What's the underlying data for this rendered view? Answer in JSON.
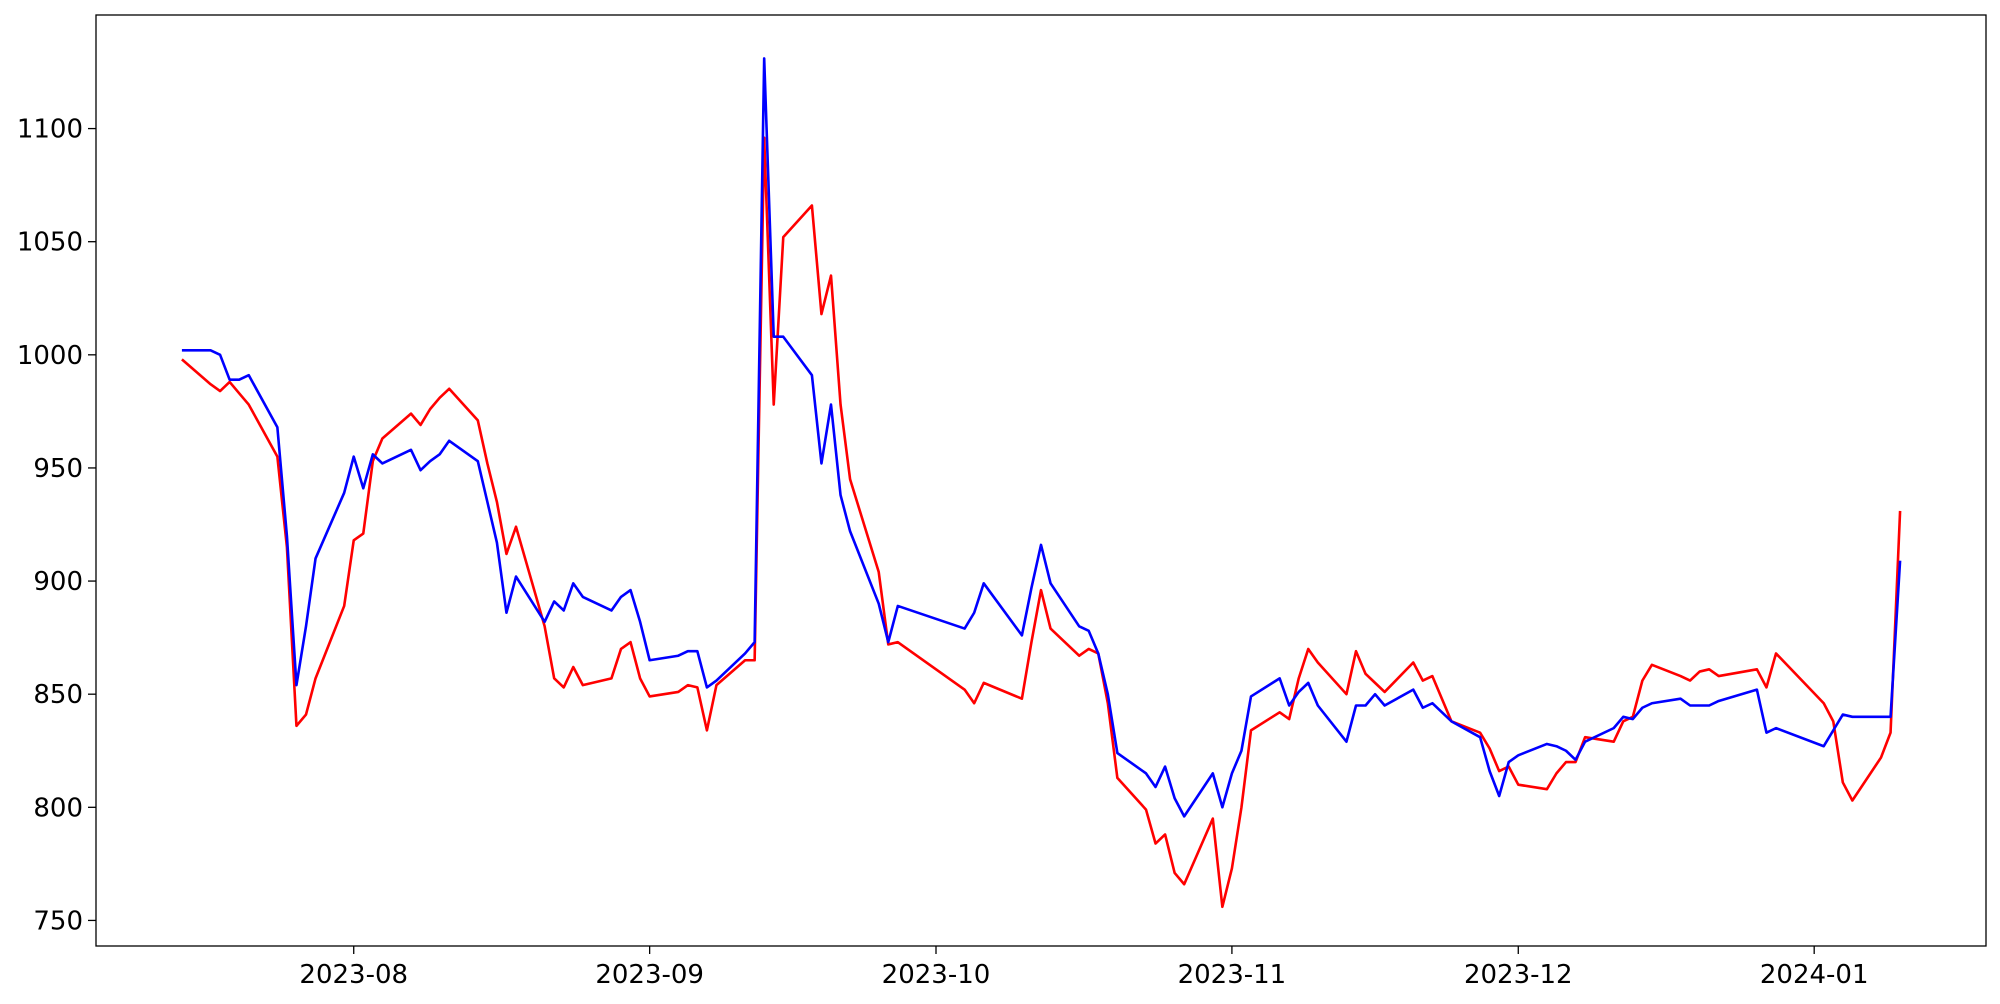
{
  "chart_data": {
    "type": "line",
    "x": [
      "2023-07-14",
      "2023-07-17",
      "2023-07-18",
      "2023-07-19",
      "2023-07-20",
      "2023-07-21",
      "2023-07-24",
      "2023-07-25",
      "2023-07-26",
      "2023-07-27",
      "2023-07-28",
      "2023-07-31",
      "2023-08-01",
      "2023-08-02",
      "2023-08-03",
      "2023-08-04",
      "2023-08-07",
      "2023-08-08",
      "2023-08-09",
      "2023-08-10",
      "2023-08-11",
      "2023-08-14",
      "2023-08-15",
      "2023-08-16",
      "2023-08-17",
      "2023-08-18",
      "2023-08-21",
      "2023-08-22",
      "2023-08-23",
      "2023-08-24",
      "2023-08-25",
      "2023-08-28",
      "2023-08-29",
      "2023-08-30",
      "2023-08-31",
      "2023-09-01",
      "2023-09-04",
      "2023-09-05",
      "2023-09-06",
      "2023-09-07",
      "2023-09-08",
      "2023-09-11",
      "2023-09-12",
      "2023-09-13",
      "2023-09-14",
      "2023-09-15",
      "2023-09-18",
      "2023-09-19",
      "2023-09-20",
      "2023-09-21",
      "2023-09-22",
      "2023-09-25",
      "2023-09-26",
      "2023-09-27",
      "2023-10-04",
      "2023-10-05",
      "2023-10-06",
      "2023-10-10",
      "2023-10-11",
      "2023-10-12",
      "2023-10-13",
      "2023-10-16",
      "2023-10-17",
      "2023-10-18",
      "2023-10-19",
      "2023-10-20",
      "2023-10-23",
      "2023-10-24",
      "2023-10-25",
      "2023-10-26",
      "2023-10-27",
      "2023-10-30",
      "2023-10-31",
      "2023-11-01",
      "2023-11-02",
      "2023-11-03",
      "2023-11-06",
      "2023-11-07",
      "2023-11-08",
      "2023-11-09",
      "2023-11-10",
      "2023-11-13",
      "2023-11-14",
      "2023-11-15",
      "2023-11-16",
      "2023-11-17",
      "2023-11-20",
      "2023-11-21",
      "2023-11-22",
      "2023-11-24",
      "2023-11-27",
      "2023-11-28",
      "2023-11-29",
      "2023-11-30",
      "2023-12-01",
      "2023-12-04",
      "2023-12-05",
      "2023-12-06",
      "2023-12-07",
      "2023-12-08",
      "2023-12-11",
      "2023-12-12",
      "2023-12-13",
      "2023-12-14",
      "2023-12-15",
      "2023-12-18",
      "2023-12-19",
      "2023-12-20",
      "2023-12-21",
      "2023-12-22",
      "2023-12-26",
      "2023-12-27",
      "2023-12-28",
      "2024-01-02",
      "2024-01-03",
      "2024-01-04",
      "2024-01-05",
      "2024-01-08",
      "2024-01-09",
      "2024-01-10"
    ],
    "series": [
      {
        "color": "#ff0000",
        "values": [
          998,
          987,
          984,
          988,
          983,
          978,
          955,
          915,
          836,
          841,
          857,
          889,
          918,
          921,
          953,
          963,
          974,
          969,
          976,
          981,
          985,
          971,
          952,
          935,
          912,
          924,
          880,
          857,
          853,
          862,
          854,
          857,
          870,
          873,
          857,
          849,
          851,
          854,
          853,
          834,
          854,
          865,
          865,
          1096,
          978,
          1052,
          1066,
          1018,
          1035,
          978,
          945,
          904,
          872,
          873,
          852,
          846,
          855,
          848,
          873,
          896,
          879,
          867,
          870,
          868,
          846,
          813,
          799,
          784,
          788,
          771,
          766,
          795,
          756,
          773,
          800,
          834,
          842,
          839,
          857,
          870,
          864,
          850,
          869,
          859,
          855,
          851,
          864,
          856,
          858,
          838,
          833,
          826,
          816,
          818,
          810,
          808,
          815,
          820,
          820,
          831,
          829,
          838,
          840,
          856,
          863,
          858,
          856,
          860,
          861,
          858,
          861,
          853,
          868,
          846,
          838,
          811,
          803,
          822,
          833,
          931
        ]
      },
      {
        "color": "#0000ff",
        "values": [
          1002,
          1002,
          1000,
          989,
          989,
          991,
          968,
          920,
          854,
          880,
          910,
          939,
          955,
          941,
          956,
          952,
          958,
          949,
          953,
          956,
          962,
          953,
          935,
          917,
          886,
          902,
          882,
          891,
          887,
          899,
          893,
          887,
          893,
          896,
          882,
          865,
          867,
          869,
          869,
          853,
          856,
          868,
          873,
          1131,
          1008,
          1008,
          991,
          952,
          978,
          938,
          922,
          890,
          873,
          889,
          879,
          886,
          899,
          876,
          897,
          916,
          899,
          880,
          878,
          868,
          850,
          824,
          815,
          809,
          818,
          804,
          796,
          815,
          800,
          815,
          825,
          849,
          857,
          845,
          851,
          855,
          845,
          829,
          845,
          845,
          850,
          845,
          852,
          844,
          846,
          838,
          831,
          816,
          805,
          820,
          823,
          828,
          827,
          825,
          821,
          829,
          835,
          840,
          839,
          844,
          846,
          848,
          845,
          845,
          845,
          847,
          852,
          833,
          835,
          827,
          834,
          841,
          840,
          840,
          840,
          909
        ]
      }
    ],
    "xlim": [
      "2023-07-05",
      "2024-01-19"
    ],
    "xticks": [
      {
        "value": "2023-08-01",
        "label": "2023-08"
      },
      {
        "value": "2023-09-01",
        "label": "2023-09"
      },
      {
        "value": "2023-10-01",
        "label": "2023-10"
      },
      {
        "value": "2023-11-01",
        "label": "2023-11"
      },
      {
        "value": "2023-12-01",
        "label": "2023-12"
      },
      {
        "value": "2024-01-01",
        "label": "2024-01"
      }
    ],
    "ylim": [
      738.7,
      1150.2
    ],
    "yticks": [
      750,
      800,
      850,
      900,
      950,
      1000,
      1050,
      1100
    ],
    "grid": false
  }
}
